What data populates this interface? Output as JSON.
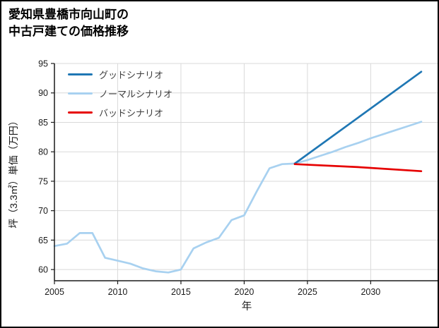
{
  "header": {
    "title_line1": "愛知県豊橋市向山町の",
    "title_line2": "中古戸建ての価格推移"
  },
  "colors": {
    "grid": "#d9d9d9",
    "axis": "#1a1a1a",
    "tick_label": "#1a1a1a",
    "axis_label": "#1a1a1a",
    "legend_text": "#3d3d3d",
    "background": "#ffffff"
  },
  "chart_data": {
    "type": "line",
    "title": "愛知県豊橋市向山町の中古戸建ての価格推移",
    "xlabel": "年",
    "ylabel": "坪（3.3㎡）単価（万円）",
    "xlim": [
      2005,
      2035.4
    ],
    "ylim": [
      58.1,
      95
    ],
    "xticks": [
      2005,
      2010,
      2015,
      2020,
      2025,
      2030
    ],
    "yticks": [
      60,
      65,
      70,
      75,
      80,
      85,
      90,
      95
    ],
    "grid": true,
    "legend_position": "upper-left",
    "series": [
      {
        "name": "グッドシナリオ",
        "color": "#1f77b4",
        "x": [
          2024,
          2029,
          2034
        ],
        "y": [
          78,
          85.8,
          93.6
        ]
      },
      {
        "name": "ノーマルシナリオ",
        "color": "#a8d1f0",
        "x": [
          2005,
          2006,
          2007,
          2008,
          2009,
          2010,
          2011,
          2012,
          2013,
          2014,
          2015,
          2016,
          2017,
          2018,
          2019,
          2020,
          2021,
          2022,
          2023,
          2024,
          2025,
          2026,
          2027,
          2028,
          2029,
          2030,
          2031,
          2032,
          2033,
          2034
        ],
        "y": [
          64,
          64.4,
          66.2,
          66.2,
          62,
          61.5,
          61,
          60.2,
          59.7,
          59.5,
          60,
          63.6,
          64.6,
          65.4,
          68.4,
          69.2,
          73.3,
          77.2,
          77.9,
          78,
          78.6,
          79.3,
          80,
          80.8,
          81.5,
          82.3,
          83,
          83.7,
          84.4,
          85.1
        ]
      },
      {
        "name": "バッドシナリオ",
        "color": "#e60000",
        "x": [
          2024,
          2029,
          2034
        ],
        "y": [
          77.9,
          77.4,
          76.7
        ]
      }
    ]
  }
}
